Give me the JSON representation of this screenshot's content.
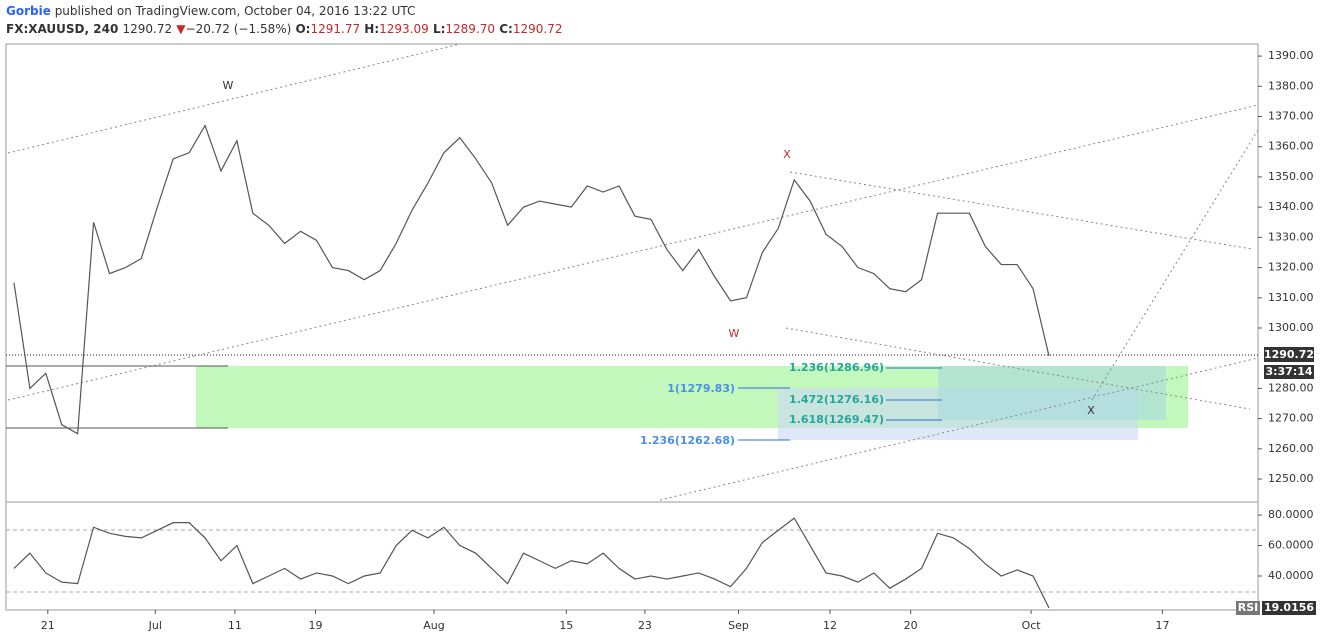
{
  "header": {
    "author": "Gorbie",
    "published": "published on TradingView.com, October 04, 2016 13:22 UTC",
    "symbol": "FX:XAUUSD, 240",
    "last": "1290.72",
    "arrow": "▼",
    "change": "−20.72 (−1.58%)",
    "o_label": "O:",
    "o": "1291.77",
    "h_label": "H:",
    "h": "1293.09",
    "l_label": "L:",
    "l": "1289.70",
    "c_label": "C:",
    "c": "1290.72"
  },
  "annotations": {
    "wave_w1": "W",
    "wave_x1": "X",
    "wave_w2": "W",
    "wave_x2": "X",
    "fib1": "1.236(1286.96)",
    "fib2": "1(1279.83)",
    "fib3": "1.472(1276.16)",
    "fib4": "1.618(1269.47)",
    "fib5": "1.236(1262.68)",
    "countdown": "3:37:14",
    "rsi_label": "RSI"
  },
  "chart_data": [
    {
      "type": "line",
      "color": "#555555",
      "xlim": [
        0,
        314.5
      ],
      "ylim": [
        1242.4,
        1394
      ],
      "x": [
        2,
        6,
        10,
        14,
        18,
        22,
        26,
        30,
        34,
        38,
        42,
        46,
        50,
        54,
        58,
        62,
        66,
        70,
        74,
        78,
        82,
        86,
        90,
        94,
        98,
        102,
        106,
        110,
        114,
        118,
        122,
        126,
        130,
        134,
        138,
        142,
        146,
        150,
        154,
        158,
        162,
        166,
        170,
        174,
        178,
        182,
        186,
        190,
        194,
        198,
        202,
        206,
        210,
        214,
        218,
        222,
        226,
        230,
        234,
        238,
        242,
        246,
        250,
        254,
        258,
        262
      ],
      "values": [
        1315,
        1280,
        1285,
        1268,
        1265,
        1335,
        1318,
        1320,
        1323,
        1340,
        1356,
        1358,
        1367,
        1352,
        1362,
        1338,
        1334,
        1328,
        1332,
        1329,
        1320,
        1319,
        1316,
        1319,
        1328,
        1339,
        1348,
        1358,
        1363,
        1356,
        1348,
        1334,
        1340,
        1342,
        1341,
        1340,
        1347,
        1345,
        1347,
        1337,
        1336,
        1326,
        1319,
        1326,
        1317,
        1309,
        1310,
        1325,
        1333,
        1349,
        1342,
        1331,
        1327,
        1320,
        1318,
        1313,
        1312,
        1316,
        1338,
        1338,
        1338,
        1327,
        1321,
        1321,
        1313,
        1290.72
      ],
      "yticks": [
        {
          "value": 1390,
          "label": "1390.00"
        },
        {
          "value": 1380,
          "label": "1380.00"
        },
        {
          "value": 1370,
          "label": "1370.00"
        },
        {
          "value": 1360,
          "label": "1360.00"
        },
        {
          "value": 1350,
          "label": "1350.00"
        },
        {
          "value": 1340,
          "label": "1340.00"
        },
        {
          "value": 1330,
          "label": "1330.00"
        },
        {
          "value": 1320,
          "label": "1320.00"
        },
        {
          "value": 1310,
          "label": "1310.00"
        },
        {
          "value": 1300,
          "label": "1300.00"
        },
        {
          "value": 1280,
          "label": "1280.00"
        },
        {
          "value": 1270,
          "label": "1270.00"
        },
        {
          "value": 1260,
          "label": "1260.00"
        },
        {
          "value": 1250,
          "label": "1250.00"
        }
      ]
    },
    {
      "type": "line",
      "color": "#555555",
      "xlim": [
        0,
        314.5
      ],
      "ylim": [
        17.7,
        87.9
      ],
      "x": [
        2,
        6,
        10,
        14,
        18,
        22,
        26,
        30,
        34,
        38,
        42,
        46,
        50,
        54,
        58,
        62,
        66,
        70,
        74,
        78,
        82,
        86,
        90,
        94,
        98,
        102,
        106,
        110,
        114,
        118,
        122,
        126,
        130,
        134,
        138,
        142,
        146,
        150,
        154,
        158,
        162,
        166,
        170,
        174,
        178,
        182,
        186,
        190,
        194,
        198,
        202,
        206,
        210,
        214,
        218,
        222,
        226,
        230,
        234,
        238,
        242,
        246,
        250,
        254,
        258,
        262
      ],
      "values": [
        45,
        55,
        42,
        36,
        35,
        72,
        68,
        66,
        65,
        70,
        75,
        75,
        65,
        50,
        60,
        35,
        40,
        45,
        38,
        42,
        40,
        35,
        40,
        42,
        60,
        70,
        65,
        72,
        60,
        55,
        45,
        35,
        55,
        50,
        45,
        50,
        48,
        55,
        45,
        38,
        40,
        38,
        40,
        42,
        38,
        33,
        45,
        62,
        70,
        78,
        60,
        42,
        40,
        36,
        42,
        32,
        38,
        45,
        68,
        65,
        58,
        48,
        40,
        44,
        40,
        19.0156
      ],
      "yticks": [
        {
          "value": 80,
          "label": "80.0000"
        },
        {
          "value": 60,
          "label": "60.0000"
        },
        {
          "value": 40,
          "label": "40.0000"
        }
      ],
      "xticks": [
        {
          "value": 10.5,
          "label": "21"
        },
        {
          "value": 37.5,
          "label": "Jul"
        },
        {
          "value": 57.5,
          "label": "11"
        },
        {
          "value": 77.75,
          "label": "19"
        },
        {
          "value": 107.5,
          "label": "Aug"
        },
        {
          "value": 140.75,
          "label": "15"
        },
        {
          "value": 160.5,
          "label": "23"
        },
        {
          "value": 184,
          "label": "Sep"
        },
        {
          "value": 207,
          "label": "12"
        },
        {
          "value": 227.25,
          "label": "20"
        },
        {
          "value": 257.5,
          "label": "Oct"
        },
        {
          "value": 290.5,
          "label": "17"
        }
      ]
    }
  ]
}
